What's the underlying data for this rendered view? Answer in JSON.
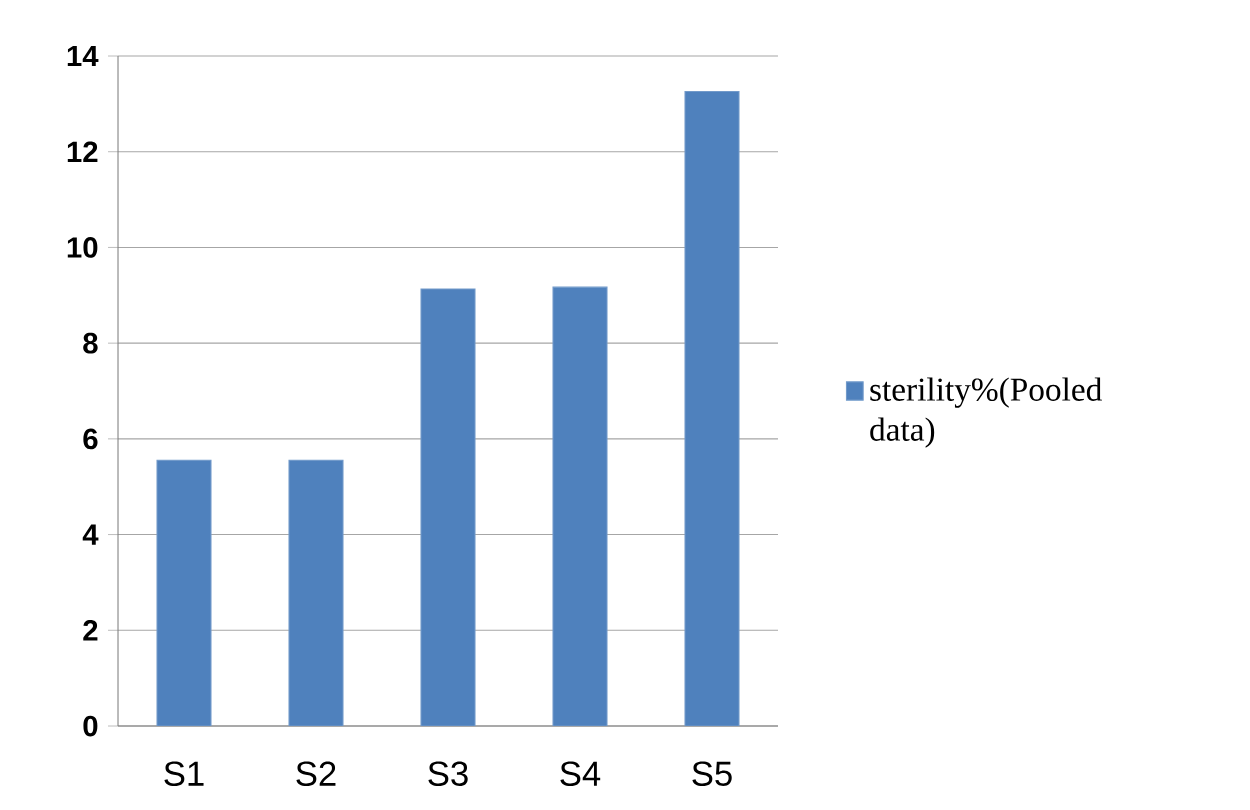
{
  "chart_data": {
    "type": "bar",
    "categories": [
      "S1",
      "S2",
      "S3",
      "S4",
      "S5"
    ],
    "series": [
      {
        "name": "sterility%(Pooled data)",
        "color": "#4f81bd",
        "values": [
          5.55,
          5.55,
          9.13,
          9.17,
          13.26
        ]
      }
    ],
    "ylim": [
      0,
      14
    ],
    "yticks": [
      0,
      2,
      4,
      6,
      8,
      10,
      12,
      14
    ],
    "grid": "y",
    "legend": "right"
  }
}
